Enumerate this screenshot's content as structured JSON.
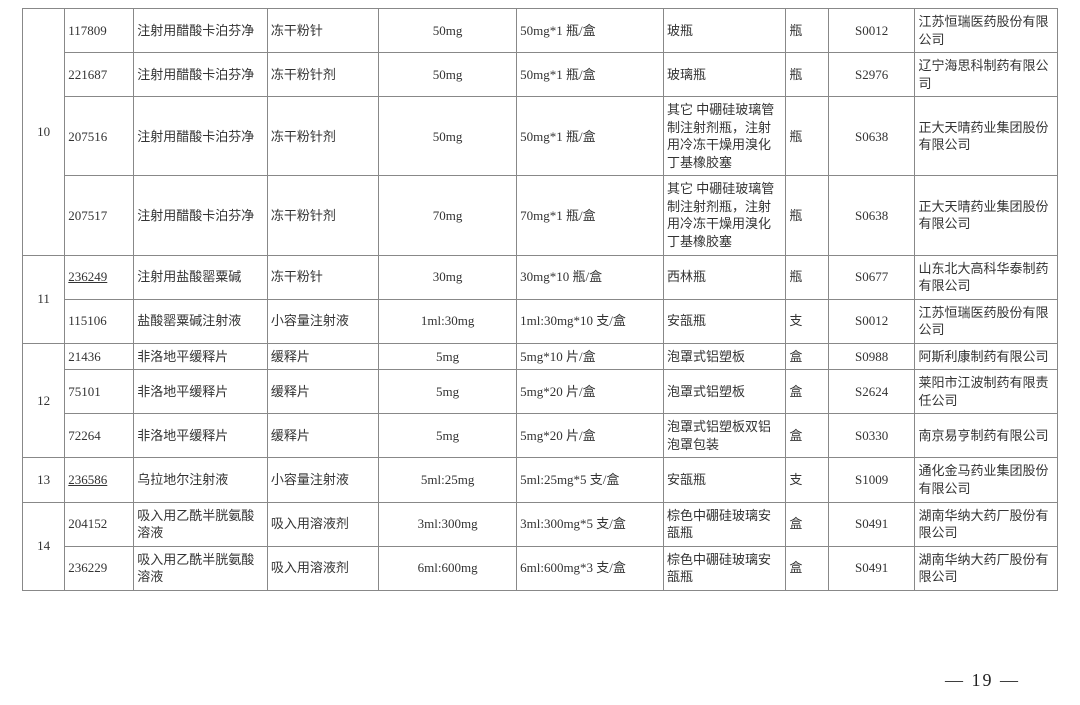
{
  "page_number": "— 19 —",
  "rows": [
    {
      "idx": "",
      "id": "117809",
      "name": "注射用醋酸卡泊芬净",
      "form": "冻干粉针",
      "spec": "50mg",
      "pack": "50mg*1 瓶/盒",
      "mat": "玻瓶",
      "unit": "瓶",
      "code": "S0012",
      "mfr": "江苏恒瑞医药股份有限公司"
    },
    {
      "idx": "",
      "id": "221687",
      "name": "注射用醋酸卡泊芬净",
      "form": "冻干粉针剂",
      "spec": "50mg",
      "pack": "50mg*1 瓶/盒",
      "mat": "玻璃瓶",
      "unit": "瓶",
      "code": "S2976",
      "mfr": "辽宁海思科制药有限公司"
    },
    {
      "idx": "10",
      "id": "207516",
      "name": "注射用醋酸卡泊芬净",
      "form": "冻干粉针剂",
      "spec": "50mg",
      "pack": "50mg*1 瓶/盒",
      "mat": "其它 中硼硅玻璃管制注射剂瓶，注射用冷冻干燥用溴化丁基橡胶塞",
      "unit": "瓶",
      "code": "S0638",
      "mfr": "正大天晴药业集团股份有限公司"
    },
    {
      "idx": "",
      "id": "207517",
      "name": "注射用醋酸卡泊芬净",
      "form": "冻干粉针剂",
      "spec": "70mg",
      "pack": "70mg*1 瓶/盒",
      "mat": "其它 中硼硅玻璃管制注射剂瓶，注射用冷冻干燥用溴化丁基橡胶塞",
      "unit": "瓶",
      "code": "S0638",
      "mfr": "正大天晴药业集团股份有限公司"
    },
    {
      "idx": "",
      "id": "236249",
      "id_u": true,
      "name": "注射用盐酸罂粟碱",
      "form": "冻干粉针",
      "spec": "30mg",
      "pack": "30mg*10 瓶/盒",
      "mat": "西林瓶",
      "unit": "瓶",
      "code": "S0677",
      "mfr": "山东北大高科华泰制药有限公司"
    },
    {
      "idx": "11",
      "id": "115106",
      "name": "盐酸罂粟碱注射液",
      "form": "小容量注射液",
      "spec": "1ml:30mg",
      "pack": "1ml:30mg*10 支/盒",
      "mat": "安瓿瓶",
      "unit": "支",
      "code": "S0012",
      "mfr": "江苏恒瑞医药股份有限公司"
    },
    {
      "idx": "",
      "id": "21436",
      "name": "非洛地平缓释片",
      "form": "缓释片",
      "spec": "5mg",
      "pack": "5mg*10 片/盒",
      "mat": "泡罩式铝塑板",
      "unit": "盒",
      "code": "S0988",
      "mfr": "阿斯利康制药有限公司"
    },
    {
      "idx": "12",
      "id": "75101",
      "name": "非洛地平缓释片",
      "form": "缓释片",
      "spec": "5mg",
      "pack": "5mg*20 片/盒",
      "mat": "泡罩式铝塑板",
      "unit": "盒",
      "code": "S2624",
      "mfr": "莱阳市江波制药有限责任公司"
    },
    {
      "idx": "",
      "id": "72264",
      "name": "非洛地平缓释片",
      "form": "缓释片",
      "spec": "5mg",
      "pack": "5mg*20 片/盒",
      "mat": "泡罩式铝塑板双铝泡罩包装",
      "unit": "盒",
      "code": "S0330",
      "mfr": "南京易亨制药有限公司"
    },
    {
      "idx": "13",
      "id": "236586",
      "id_u": true,
      "name": "乌拉地尔注射液",
      "form": "小容量注射液",
      "spec": "5ml:25mg",
      "pack": "5ml:25mg*5 支/盒",
      "mat": "安瓿瓶",
      "unit": "支",
      "code": "S1009",
      "mfr": "通化金马药业集团股份有限公司"
    },
    {
      "idx": "",
      "id": "204152",
      "name": "吸入用乙酰半胱氨酸溶液",
      "form": "吸入用溶液剂",
      "spec": "3ml:300mg",
      "pack": "3ml:300mg*5 支/盒",
      "mat": "棕色中硼硅玻璃安瓿瓶",
      "unit": "盒",
      "code": "S0491",
      "mfr": "湖南华纳大药厂股份有限公司"
    },
    {
      "idx": "14",
      "id": "236229",
      "name": "吸入用乙酰半胱氨酸溶液",
      "form": "吸入用溶液剂",
      "spec": "6ml:600mg",
      "pack": "6ml:600mg*3 支/盒",
      "mat": "棕色中硼硅玻璃安瓿瓶",
      "unit": "盒",
      "code": "S0491",
      "mfr": "湖南华纳大药厂股份有限公司"
    }
  ],
  "groups": [
    {
      "start": 0,
      "span": 4,
      "label": "10"
    },
    {
      "start": 4,
      "span": 2,
      "label": "11"
    },
    {
      "start": 6,
      "span": 3,
      "label": "12"
    },
    {
      "start": 9,
      "span": 1,
      "label": "13"
    },
    {
      "start": 10,
      "span": 2,
      "label": "14"
    }
  ]
}
